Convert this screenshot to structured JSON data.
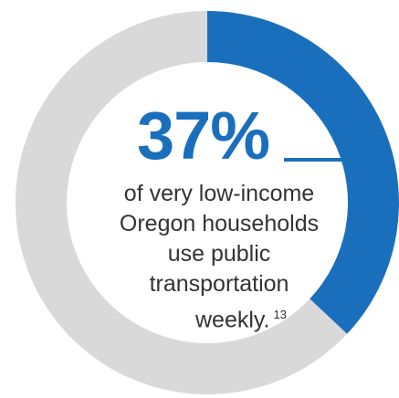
{
  "chart_data": {
    "type": "pie",
    "variant": "donut",
    "values": [
      37,
      63
    ],
    "colors": [
      "#1a6fbd",
      "#d9d9d9"
    ]
  },
  "stat": {
    "value": "37%",
    "description_lines": [
      "of very low-income",
      "Oregon households",
      "use public",
      "transportation"
    ],
    "last_line": "weekly.",
    "footnote": "13"
  },
  "colors": {
    "accent": "#1a6fbd",
    "track": "#d9d9d9",
    "text": "#333333",
    "background": "#ffffff"
  }
}
